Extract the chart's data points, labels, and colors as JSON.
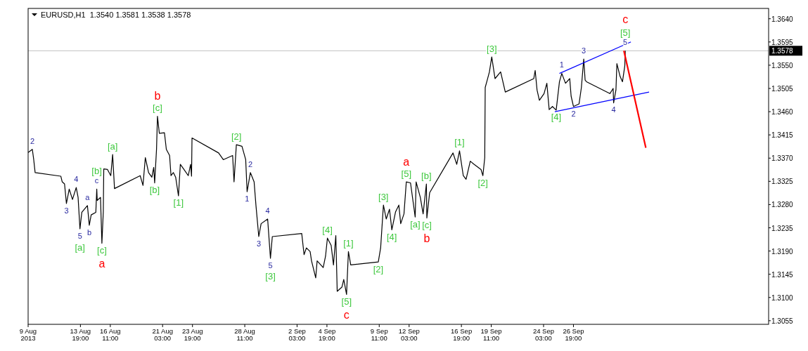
{
  "chart_data": {
    "type": "line",
    "title": "EURUSD,H1  1.3540 1.3581 1.3538 1.3578",
    "xlim": [
      "2013-08-09T03:00",
      "2013-10-14T05:00"
    ],
    "xticks": [
      {
        "value": "2013-08-09T03:00",
        "label": "9 Aug 2013"
      },
      {
        "value": "2013-08-13T19:00",
        "label": "13 Aug 19:00"
      },
      {
        "value": "2013-08-16T11:00",
        "label": "16 Aug 11:00"
      },
      {
        "value": "2013-08-21T03:00",
        "label": "21 Aug 03:00"
      },
      {
        "value": "2013-08-23T19:00",
        "label": "23 Aug 19:00"
      },
      {
        "value": "2013-08-28T11:00",
        "label": "28 Aug 11:00"
      },
      {
        "value": "2013-09-02T03:00",
        "label": "2 Sep 03:00"
      },
      {
        "value": "2013-09-04T19:00",
        "label": "4 Sep 19:00"
      },
      {
        "value": "2013-09-09T11:00",
        "label": "9 Sep 11:00"
      },
      {
        "value": "2013-09-12T03:00",
        "label": "12 Sep 03:00"
      },
      {
        "value": "2013-09-16T19:00",
        "label": "16 Sep 19:00"
      },
      {
        "value": "2013-09-19T11:00",
        "label": "19 Sep 11:00"
      },
      {
        "value": "2013-09-24T03:00",
        "label": "24 Sep 03:00"
      },
      {
        "value": "2013-09-26T19:00",
        "label": "26 Sep 19:00"
      }
    ],
    "ylim": [
      1.3048,
      1.366
    ],
    "yticks": [
      {
        "value": 1.364,
        "label": "1.3640"
      },
      {
        "value": 1.3595,
        "label": "1.3595"
      },
      {
        "value": 1.355,
        "label": "1.3550"
      },
      {
        "value": 1.3505,
        "label": "1.3505"
      },
      {
        "value": 1.346,
        "label": "1.3460"
      },
      {
        "value": 1.3415,
        "label": "1.3415"
      },
      {
        "value": 1.337,
        "label": "1.3370"
      },
      {
        "value": 1.3325,
        "label": "1.3325"
      },
      {
        "value": 1.328,
        "label": "1.3280"
      },
      {
        "value": 1.3235,
        "label": "1.3235"
      },
      {
        "value": 1.319,
        "label": "1.3190"
      },
      {
        "value": 1.3145,
        "label": "1.3145"
      },
      {
        "value": 1.31,
        "label": "1.3100"
      },
      {
        "value": 1.3055,
        "label": "1.3055"
      }
    ],
    "series": [
      {
        "color": "#000000",
        "x": [
          "2013-08-09T03:00",
          "2013-08-09T12:00",
          "2013-08-09T15:00",
          "2013-08-09T18:00",
          "2013-08-12T01:00",
          "2013-08-12T04:00",
          "2013-08-12T09:00",
          "2013-08-12T13:00",
          "2013-08-12T19:00",
          "2013-08-13T02:00",
          "2013-08-13T10:00",
          "2013-08-13T14:00",
          "2013-08-13T18:00",
          "2013-08-13T22:00",
          "2013-08-14T10:00",
          "2013-08-14T14:00",
          "2013-08-14T18:00",
          "2013-08-15T04:00",
          "2013-08-15T06:00",
          "2013-08-15T07:00",
          "2013-08-15T14:00",
          "2013-08-15T17:00",
          "2013-08-15T20:00",
          "2013-08-15T21:00",
          "2013-08-16T05:00",
          "2013-08-16T12:00",
          "2013-08-16T16:00",
          "2013-08-16T20:00",
          "2013-08-19T03:00",
          "2013-08-19T09:00",
          "2013-08-19T14:00",
          "2013-08-19T21:00",
          "2013-08-20T04:00",
          "2013-08-20T08:00",
          "2013-08-20T10:00",
          "2013-08-20T14:00",
          "2013-08-20T16:00",
          "2013-08-20T20:00",
          "2013-08-21T07:00",
          "2013-08-21T11:00",
          "2013-08-21T18:00",
          "2013-08-21T21:00",
          "2013-08-22T02:00",
          "2013-08-22T07:00",
          "2013-08-22T13:00",
          "2013-08-22T17:00",
          "2013-08-23T00:00",
          "2013-08-23T10:00",
          "2013-08-23T15:00",
          "2013-08-23T17:00",
          "2013-08-23T18:00",
          "2013-08-26T03:00",
          "2013-08-26T13:00",
          "2013-08-26T23:00",
          "2013-08-27T09:00",
          "2013-08-27T12:00",
          "2013-08-27T17:00",
          "2013-08-28T05:00",
          "2013-08-28T13:00",
          "2013-08-28T16:00",
          "2013-08-28T23:00",
          "2013-08-29T07:00",
          "2013-08-29T11:00",
          "2013-08-29T17:00",
          "2013-08-29T22:00",
          "2013-08-30T12:00",
          "2013-08-30T18:00",
          "2013-08-30T22:00",
          "2013-09-02T13:00",
          "2013-09-02T18:00",
          "2013-09-02T23:00",
          "2013-09-03T07:00",
          "2013-09-03T10:00",
          "2013-09-03T19:00",
          "2013-09-03T22:00",
          "2013-09-04T11:00",
          "2013-09-04T16:00",
          "2013-09-04T20:00",
          "2013-09-05T04:00",
          "2013-09-05T09:00",
          "2013-09-05T14:00",
          "2013-09-05T17:00",
          "2013-09-06T03:00",
          "2013-09-06T07:00",
          "2013-09-06T13:00",
          "2013-09-06T17:00",
          "2013-09-06T22:00",
          "2013-09-09T09:00",
          "2013-09-09T14:00",
          "2013-09-09T18:00",
          "2013-09-09T20:00",
          "2013-09-10T02:00",
          "2013-09-10T09:00",
          "2013-09-10T14:00",
          "2013-09-10T22:00",
          "2013-09-11T05:00",
          "2013-09-11T09:00",
          "2013-09-11T16:00",
          "2013-09-11T21:00",
          "2013-09-12T06:00",
          "2013-09-12T16:00",
          "2013-09-12T18:00",
          "2013-09-13T03:00",
          "2013-09-13T09:00",
          "2013-09-13T16:00",
          "2013-09-13T17:00",
          "2013-09-13T23:00",
          "2013-09-16T01:00",
          "2013-09-16T09:00",
          "2013-09-16T15:00",
          "2013-09-16T23:00",
          "2013-09-17T05:00",
          "2013-09-17T14:00",
          "2013-09-17T22:00",
          "2013-09-18T13:00",
          "2013-09-18T17:00",
          "2013-09-18T21:00",
          "2013-09-18T22:00",
          "2013-09-19T02:00",
          "2013-09-19T07:00",
          "2013-09-19T12:00",
          "2013-09-19T19:00",
          "2013-09-20T07:00",
          "2013-09-20T17:00",
          "2013-09-23T06:00",
          "2013-09-23T09:00",
          "2013-09-23T13:00",
          "2013-09-23T18:00",
          "2013-09-24T04:00",
          "2013-09-24T10:00",
          "2013-09-24T15:00",
          "2013-09-24T22:00",
          "2013-09-25T06:00",
          "2013-09-25T13:00",
          "2013-09-25T18:00",
          "2013-09-26T02:00",
          "2013-09-26T11:00",
          "2013-09-26T14:00",
          "2013-09-26T19:00",
          "2013-09-27T07:00",
          "2013-09-27T12:00",
          "2013-09-27T17:00",
          "2013-09-27T20:00",
          "2013-09-27T23:00",
          "2013-09-30T01:00",
          "2013-09-30T08:00",
          "2013-09-30T09:00",
          "2013-09-30T14:00",
          "2013-09-30T16:00",
          "2013-09-30T23:00",
          "2013-10-01T04:00",
          "2013-10-01T09:00",
          "2013-10-01T10:00"
        ],
        "values": [
          1.3381,
          1.3387,
          1.3367,
          1.3342,
          1.3335,
          1.3324,
          1.332,
          1.3282,
          1.331,
          1.329,
          1.3313,
          1.3294,
          1.3233,
          1.3265,
          1.3278,
          1.324,
          1.326,
          1.3265,
          1.331,
          1.3288,
          1.3294,
          1.3205,
          1.3266,
          1.3349,
          1.3348,
          1.3336,
          1.3377,
          1.3311,
          1.3336,
          1.3317,
          1.3371,
          1.3342,
          1.3333,
          1.3352,
          1.3322,
          1.3387,
          1.3451,
          1.3418,
          1.3419,
          1.3387,
          1.3375,
          1.3336,
          1.3342,
          1.3333,
          1.3297,
          1.3358,
          1.3349,
          1.3336,
          1.3358,
          1.3335,
          1.3409,
          1.338,
          1.3367,
          1.3371,
          1.3375,
          1.3324,
          1.3396,
          1.3393,
          1.3367,
          1.3305,
          1.3342,
          1.3324,
          1.3278,
          1.3218,
          1.3243,
          1.3252,
          1.3176,
          1.3218,
          1.3224,
          1.3183,
          1.3196,
          1.3189,
          1.3171,
          1.3138,
          1.3171,
          1.3158,
          1.318,
          1.3215,
          1.3201,
          1.3163,
          1.322,
          1.3112,
          1.312,
          1.3135,
          1.3106,
          1.3189,
          1.3163,
          1.3169,
          1.3196,
          1.3252,
          1.3279,
          1.3252,
          1.3271,
          1.3231,
          1.3266,
          1.3279,
          1.3243,
          1.3262,
          1.3324,
          1.3322,
          1.3256,
          1.3324,
          1.3294,
          1.3262,
          1.332,
          1.3254,
          1.3303,
          1.338,
          1.3358,
          1.3384,
          1.3336,
          1.3329,
          1.3364,
          1.3358,
          1.3348,
          1.3336,
          1.3371,
          1.3507,
          1.352,
          1.3537,
          1.3566,
          1.3524,
          1.3537,
          1.3498,
          1.3524,
          1.354,
          1.3502,
          1.3482,
          1.3495,
          1.3515,
          1.3464,
          1.347,
          1.3463,
          1.3518,
          1.3534,
          1.3515,
          1.3524,
          1.349,
          1.347,
          1.3475,
          1.3507,
          1.3562,
          1.3521,
          1.3518,
          1.3495,
          1.3505,
          1.3477,
          1.3502,
          1.3553,
          1.3528,
          1.3518,
          1.3549,
          1.3578
        ]
      },
      {
        "color": "#0000ff",
        "x": [
          "2013-09-25T13:00",
          "2013-10-01T22:00"
        ],
        "values": [
          1.3534,
          1.3595
        ]
      },
      {
        "color": "#0000ff",
        "x": [
          "2013-09-25T03:00",
          "2013-10-03T13:00"
        ],
        "values": [
          1.346,
          1.3498
        ]
      },
      {
        "color": "#ff0000",
        "x": [
          "2013-10-01T07:00",
          "2013-10-03T06:00"
        ],
        "values": [
          1.3578,
          1.339
        ]
      }
    ],
    "ref_lines": [
      {
        "axis": "y",
        "value": 1.3578,
        "label": "1.3578",
        "color": "#c0c0c0"
      }
    ],
    "annotations": [
      {
        "text": "2",
        "x": "2013-08-09T12:00",
        "y": 1.3387
      },
      {
        "text": "3",
        "x": "2013-08-12T13:00",
        "y": 1.3282
      },
      {
        "text": "4",
        "x": "2013-08-13T10:00",
        "y": 1.3313
      },
      {
        "text": "5",
        "x": "2013-08-13T18:00",
        "y": 1.3233
      },
      {
        "text": "[a]",
        "x": "2013-08-13T18:00",
        "y": 1.3233
      },
      {
        "text": "a",
        "x": "2013-08-14T10:00",
        "y": 1.3278
      },
      {
        "text": "b",
        "x": "2013-08-14T14:00",
        "y": 1.324
      },
      {
        "text": "c",
        "x": "2013-08-15T06:00",
        "y": 1.331
      },
      {
        "text": "[b]",
        "x": "2013-08-15T06:00",
        "y": 1.331
      },
      {
        "text": "[c]",
        "x": "2013-08-15T17:00",
        "y": 1.3205
      },
      {
        "text": "a",
        "x": "2013-08-15T17:00",
        "y": 1.3205
      },
      {
        "text": "[a]",
        "x": "2013-08-16T16:00",
        "y": 1.3377
      },
      {
        "text": "[c]",
        "x": "2013-08-20T16:00",
        "y": 1.3451
      },
      {
        "text": "b",
        "x": "2013-08-20T16:00",
        "y": 1.3451
      },
      {
        "text": "[b]",
        "x": "2013-08-20T10:00",
        "y": 1.3322
      },
      {
        "text": "[1]",
        "x": "2013-08-22T13:00",
        "y": 1.3297
      },
      {
        "text": "[2]",
        "x": "2013-08-27T17:00",
        "y": 1.3396
      },
      {
        "text": "1",
        "x": "2013-08-28T16:00",
        "y": 1.3305
      },
      {
        "text": "2",
        "x": "2013-08-28T23:00",
        "y": 1.3342
      },
      {
        "text": "3",
        "x": "2013-08-29T17:00",
        "y": 1.3218
      },
      {
        "text": "4",
        "x": "2013-08-30T12:00",
        "y": 1.3252
      },
      {
        "text": "5",
        "x": "2013-08-30T18:00",
        "y": 1.3176
      },
      {
        "text": "[3]",
        "x": "2013-08-30T18:00",
        "y": 1.3176
      },
      {
        "text": "[4]",
        "x": "2013-09-04T20:00",
        "y": 1.3215
      },
      {
        "text": "[5]",
        "x": "2013-09-06T13:00",
        "y": 1.3106
      },
      {
        "text": "c",
        "x": "2013-09-06T13:00",
        "y": 1.3106
      },
      {
        "text": "[1]",
        "x": "2013-09-06T17:00",
        "y": 1.3189
      },
      {
        "text": "[2]",
        "x": "2013-09-09T09:00",
        "y": 1.3169
      },
      {
        "text": "[3]",
        "x": "2013-09-09T20:00",
        "y": 1.3279
      },
      {
        "text": "[4]",
        "x": "2013-09-10T14:00",
        "y": 1.3231
      },
      {
        "text": "[5]",
        "x": "2013-09-11T21:00",
        "y": 1.3324
      },
      {
        "text": "a",
        "x": "2013-09-11T21:00",
        "y": 1.3324
      },
      {
        "text": "[a]",
        "x": "2013-09-12T16:00",
        "y": 1.3256
      },
      {
        "text": "[b]",
        "x": "2013-09-13T16:00",
        "y": 1.332
      },
      {
        "text": "[c]",
        "x": "2013-09-13T17:00",
        "y": 1.3254
      },
      {
        "text": "b",
        "x": "2013-09-13T17:00",
        "y": 1.3254
      },
      {
        "text": "[1]",
        "x": "2013-09-16T15:00",
        "y": 1.3384
      },
      {
        "text": "[2]",
        "x": "2013-09-18T17:00",
        "y": 1.3336
      },
      {
        "text": "[3]",
        "x": "2013-09-19T12:00",
        "y": 1.3566
      },
      {
        "text": "[4]",
        "x": "2013-09-25T06:00",
        "y": 1.3463
      },
      {
        "text": "1",
        "x": "2013-09-25T18:00",
        "y": 1.3534
      },
      {
        "text": "2",
        "x": "2013-09-26T19:00",
        "y": 1.347
      },
      {
        "text": "3",
        "x": "2013-09-27T17:00",
        "y": 1.3562
      },
      {
        "text": "4",
        "x": "2013-09-30T09:00",
        "y": 1.3477
      },
      {
        "text": "5",
        "x": "2013-10-01T10:00",
        "y": 1.3578
      },
      {
        "text": "[5]",
        "x": "2013-10-01T10:00",
        "y": 1.3578
      },
      {
        "text": "c",
        "x": "2013-10-01T10:00",
        "y": 1.3578
      }
    ]
  }
}
